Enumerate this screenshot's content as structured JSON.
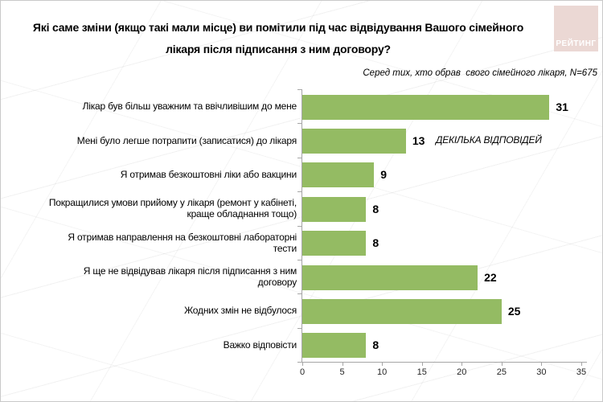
{
  "page": {
    "logo_text": "РЕЙТИНГ"
  },
  "colors": {
    "bar": "#94BB63",
    "logo_bg": "#EBD8D4",
    "logo_text": "#FFFFFF",
    "axis": "#A6A6A6"
  },
  "chart_data": {
    "type": "bar",
    "orientation": "horizontal",
    "title": "Які саме зміни (якщо такі мали місце) ви помітили під час відвідування Вашого сімейного\nлікаря після підписання з ним договору?",
    "subtitle": "Серед тих, хто обрав  свого сімейного лікаря, N=675",
    "annotation": "ДЕКІЛЬКА ВІДПОВІДЕЙ",
    "categories": [
      "Лікар був більш уважним та ввічливішим до мене",
      "Мені було легше потрапити (записатися) до лікаря",
      "Я отримав безкоштовні ліки або вакцини",
      "Покращилися умови прийому у лікаря (ремонт у кабінеті,\nкраще обладнання тощо)",
      "Я отримав направлення на безкоштовні лабораторні\nтести",
      "Я ще не відвідував лікаря після підписання з ним\nдоговору",
      "Жодних змін не відбулося",
      "Важко відповісти"
    ],
    "values": [
      31,
      13,
      9,
      8,
      8,
      22,
      25,
      8
    ],
    "xlabel": "",
    "ylabel": "",
    "xlim": [
      0,
      35
    ],
    "x_ticks": [
      0,
      5,
      10,
      15,
      20,
      25,
      30,
      35
    ],
    "grid": false,
    "legend": false
  }
}
